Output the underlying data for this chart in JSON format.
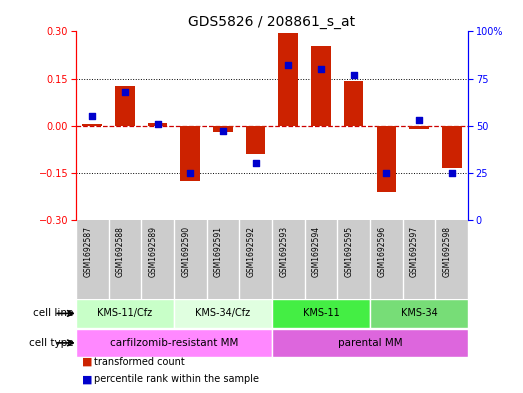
{
  "title": "GDS5826 / 208861_s_at",
  "samples": [
    "GSM1692587",
    "GSM1692588",
    "GSM1692589",
    "GSM1692590",
    "GSM1692591",
    "GSM1692592",
    "GSM1692593",
    "GSM1692594",
    "GSM1692595",
    "GSM1692596",
    "GSM1692597",
    "GSM1692598"
  ],
  "transformed_count": [
    0.005,
    0.125,
    0.01,
    -0.175,
    -0.02,
    -0.09,
    0.295,
    0.255,
    0.143,
    -0.21,
    -0.01,
    -0.135
  ],
  "percentile_rank": [
    55,
    68,
    51,
    25,
    47,
    30,
    82,
    80,
    77,
    25,
    53,
    25
  ],
  "cell_lines": [
    {
      "label": "KMS-11/Cfz",
      "start": 0,
      "end": 3,
      "color": "#c8ffc8"
    },
    {
      "label": "KMS-34/Cfz",
      "start": 3,
      "end": 6,
      "color": "#e0ffe0"
    },
    {
      "label": "KMS-11",
      "start": 6,
      "end": 9,
      "color": "#44ee44"
    },
    {
      "label": "KMS-34",
      "start": 9,
      "end": 12,
      "color": "#77dd77"
    }
  ],
  "cell_types": [
    {
      "label": "carfilzomib-resistant MM",
      "start": 0,
      "end": 6,
      "color": "#ff88ff"
    },
    {
      "label": "parental MM",
      "start": 6,
      "end": 12,
      "color": "#dd66dd"
    }
  ],
  "ylim_left": [
    -0.3,
    0.3
  ],
  "ylim_right": [
    0,
    100
  ],
  "yticks_left": [
    -0.3,
    -0.15,
    0.0,
    0.15,
    0.3
  ],
  "yticks_right": [
    0,
    25,
    50,
    75,
    100
  ],
  "bar_color": "#cc2200",
  "dot_color": "#0000cc",
  "hline_color": "#cc0000",
  "bg_color": "#ffffff",
  "sample_bg": "#cccccc"
}
